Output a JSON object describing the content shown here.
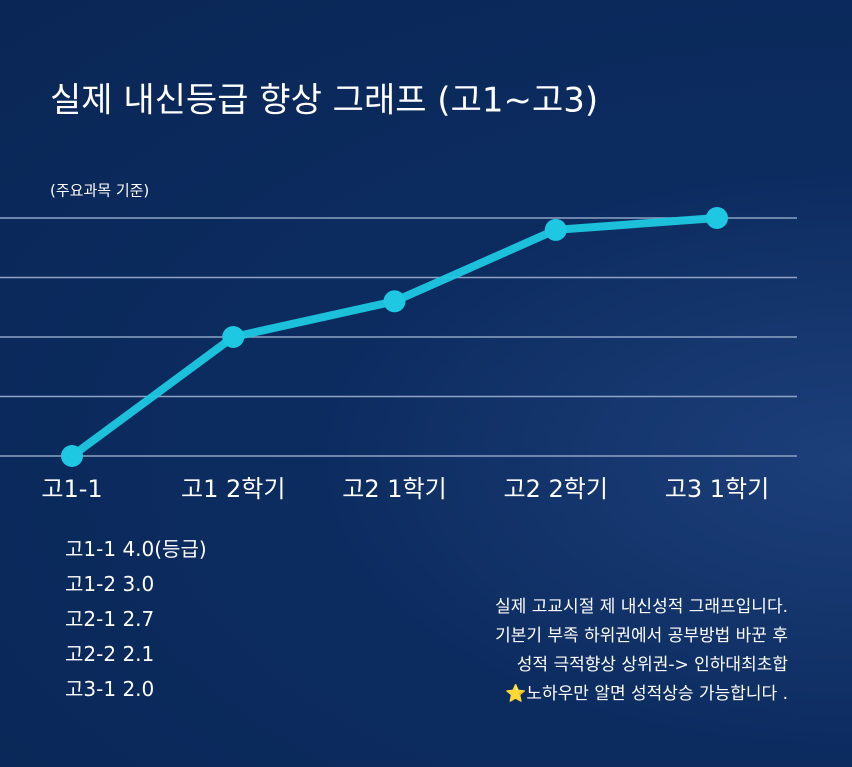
{
  "chart_data": {
    "type": "line",
    "title": "실제 내신등급 향상 그래프 (고1~고3)",
    "subtitle": "(주요과목 기준)",
    "categories": [
      "고1-1",
      "고1 2학기",
      "고2 1학기",
      "고2 2학기",
      "고3 1학기"
    ],
    "values": [
      4.0,
      3.0,
      2.7,
      2.1,
      2.0
    ],
    "list_names": [
      "고1-1",
      "고1-2",
      "고2-1",
      "고2-2",
      "고3-1"
    ],
    "value_labels": [
      "4.0(등급)",
      "3.0",
      "2.7",
      "2.1",
      "2.0"
    ],
    "color": "#1ec8e2",
    "ylim": [
      4.0,
      2.0
    ]
  },
  "notes": [
    "실제 고교시절 제 내신성적 그래프입니다.",
    "기본기 부족 하위권에서 공부방법 바꾼 후",
    "성적 극적향상 상위권-> 인하대최초합",
    "⭐노하우만 알면 성적상승 가능합니다 ."
  ]
}
